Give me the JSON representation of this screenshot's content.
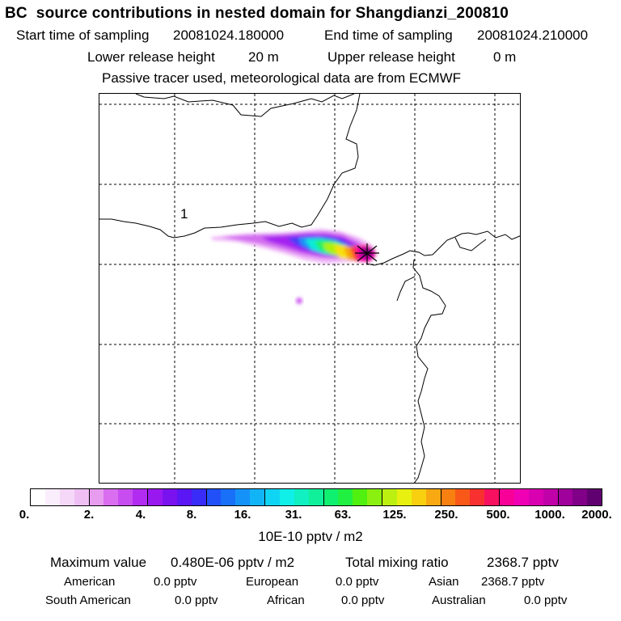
{
  "header": {
    "title": "BC  source contributions in nested domain for Shangdianzi_200810",
    "start_label": "Start time of sampling",
    "start_value": "20081024.180000",
    "end_label": "End time of sampling",
    "end_value": "20081024.210000",
    "lower_label": "Lower release height",
    "lower_value": "20 m",
    "upper_label": "Upper release height",
    "upper_value": "0 m",
    "note": "Passive tracer used, meteorological data are from ECMWF"
  },
  "map": {
    "region_label": "1",
    "receptor_marker": "receptor-cross-icon"
  },
  "colorbar": {
    "ticks": [
      "0.",
      "2.",
      "4.",
      "8.",
      "16.",
      "31.",
      "63.",
      "125.",
      "250.",
      "500.",
      "1000.",
      "2000."
    ],
    "unit": "10E-10 pptv / m2",
    "colors": [
      "#ffffff",
      "#fbeefc",
      "#f5d8f8",
      "#efbff4",
      "#e89cf0",
      "#d96ef0",
      "#c84df0",
      "#b12cf0",
      "#9a18f0",
      "#7a12f0",
      "#5a16f4",
      "#3a2cf8",
      "#2250f8",
      "#1870f8",
      "#1592f8",
      "#12b4f8",
      "#10d4f4",
      "#10f0e8",
      "#10f0c0",
      "#10f09a",
      "#10f070",
      "#20f040",
      "#50f010",
      "#8af010",
      "#bcf010",
      "#e8f010",
      "#f8d010",
      "#f8a810",
      "#f88010",
      "#f85818",
      "#f83030",
      "#f81060",
      "#f80098",
      "#f000b4",
      "#d800b0",
      "#c000a8",
      "#a0009c",
      "#800088",
      "#600070"
    ]
  },
  "stats": {
    "max_label": "Maximum value",
    "max_value": "0.480E-06 pptv / m2",
    "total_label": "Total mixing ratio",
    "total_value": "2368.7 pptv",
    "american_label": "American",
    "american_value": "0.0 pptv",
    "european_label": "European",
    "european_value": "0.0 pptv",
    "asian_label": "Asian",
    "asian_value": "2368.7 pptv",
    "south_american_label": "South American",
    "south_american_value": "0.0 pptv",
    "african_label": "African",
    "african_value": "0.0 pptv",
    "australian_label": "Australian",
    "australian_value": "0.0 pptv"
  }
}
